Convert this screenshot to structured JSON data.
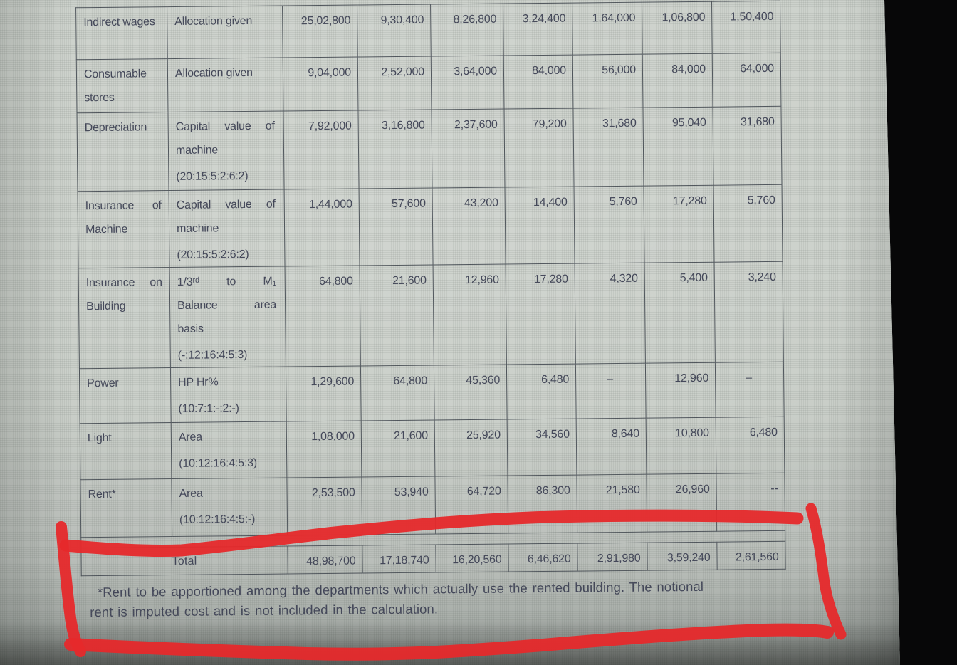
{
  "colors": {
    "annotation_red": "#e6292b",
    "screen_background": "#c7ccc6",
    "ink": "#3d4154",
    "table_border": "#4b5158"
  },
  "table": {
    "description_columns": [
      "item",
      "basis_of_apportionment"
    ],
    "value_column_count": 7,
    "rows": [
      {
        "item": "Indirect wages",
        "basis_lines": [
          {
            "t": "Allocation given",
            "j": false
          }
        ],
        "values": [
          "25,02,800",
          "9,30,400",
          "8,26,800",
          "3,24,400",
          "1,64,000",
          "1,06,800",
          "1,50,400"
        ]
      },
      {
        "item": "Consumable stores",
        "basis_lines": [
          {
            "t": "Allocation given",
            "j": false
          }
        ],
        "values": [
          "9,04,000",
          "2,52,000",
          "3,64,000",
          "84,000",
          "56,000",
          "84,000",
          "64,000"
        ]
      },
      {
        "item": "Depreciation",
        "basis_lines": [
          {
            "t": "Capital value of",
            "j": true
          },
          {
            "t": "machine",
            "j": false
          },
          {
            "t": "(20:15:5:2:6:2)",
            "j": false
          }
        ],
        "values": [
          "7,92,000",
          "3,16,800",
          "2,37,600",
          "79,200",
          "31,680",
          "95,040",
          "31,680"
        ]
      },
      {
        "item": "Insurance of Machine",
        "basis_lines": [
          {
            "t": "Capital value of",
            "j": true
          },
          {
            "t": "machine",
            "j": false
          },
          {
            "t": "(20:15:5:2:6:2)",
            "j": false
          }
        ],
        "values": [
          "1,44,000",
          "57,600",
          "43,200",
          "14,400",
          "5,760",
          "17,280",
          "5,760"
        ]
      },
      {
        "item": "Insurance on Building",
        "basis_lines": [
          {
            "t": "1/3ʳᵈ to M₁",
            "j": true
          },
          {
            "t": "Balance area",
            "j": true
          },
          {
            "t": "basis",
            "j": false
          },
          {
            "t": "(-:12:16:4:5:3)",
            "j": false
          }
        ],
        "values": [
          "64,800",
          "21,600",
          "12,960",
          "17,280",
          "4,320",
          "5,400",
          "3,240"
        ]
      },
      {
        "item": "Power",
        "basis_lines": [
          {
            "t": "HP Hr%",
            "j": false
          },
          {
            "t": "(10:7:1:-:2:-)",
            "j": false
          }
        ],
        "values": [
          "1,29,600",
          "64,800",
          "45,360",
          "6,480",
          "–",
          "12,960",
          "–"
        ]
      },
      {
        "item": "Light",
        "basis_lines": [
          {
            "t": "Area",
            "j": false
          },
          {
            "t": "(10:12:16:4:5:3)",
            "j": false
          }
        ],
        "values": [
          "1,08,000",
          "21,600",
          "25,920",
          "34,560",
          "8,640",
          "10,800",
          "6,480"
        ]
      },
      {
        "item": "Rent*",
        "basis_lines": [
          {
            "t": "Area",
            "j": false
          },
          {
            "t": "(10:12:16:4:5:-)",
            "j": false
          }
        ],
        "values": [
          "2,53,500",
          "53,940",
          "64,720",
          "86,300",
          "21,580",
          "26,960",
          "--"
        ]
      }
    ],
    "total": {
      "label": "Total",
      "values": [
        "48,98,700",
        "17,18,740",
        "16,20,560",
        "6,46,620",
        "2,91,980",
        "3,59,240",
        "2,61,560"
      ]
    }
  },
  "footnote": {
    "line1": "*Rent to be apportioned among the departments which actually use the rented building. The notional",
    "line2": "rent is imputed cost and is not included in the calculation."
  },
  "annotation": {
    "type": "hand-drawn marker rectangle",
    "highlights": "Total row and rent footnote"
  }
}
